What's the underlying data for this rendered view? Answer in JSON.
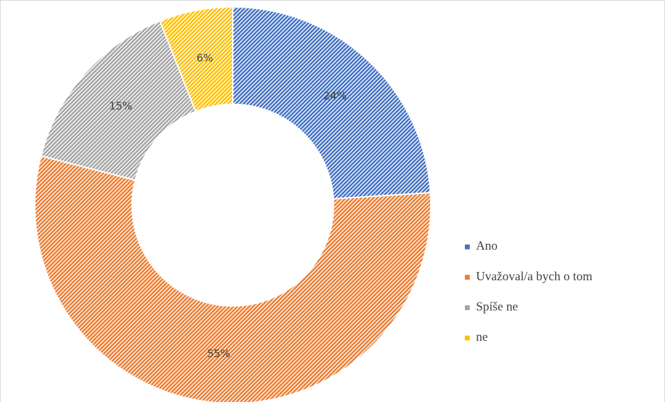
{
  "chart_data": {
    "type": "donut",
    "categories": [
      "Ano",
      "Uvažoval/a bych o tom",
      "Spíše ne",
      "ne"
    ],
    "values": [
      24,
      55,
      15,
      6
    ],
    "value_labels": [
      "24%",
      "55%",
      "15%",
      "6%"
    ],
    "colors": [
      "#4472c4",
      "#ed7d31",
      "#a5a5a5",
      "#ffc000"
    ],
    "legend": "right"
  }
}
